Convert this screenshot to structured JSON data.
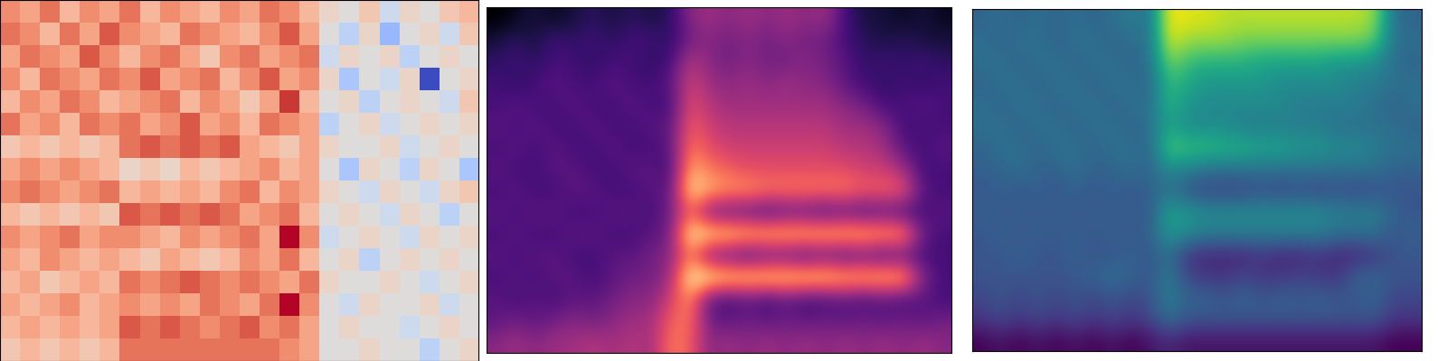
{
  "chart_data": [
    {
      "type": "heatmap",
      "color": "coolwarm",
      "tick_labels": false,
      "cells": [
        [
          0.5,
          0.4,
          0.6,
          0.3,
          0.5,
          0.4,
          0.6,
          0.3,
          0.5,
          0.4,
          0.3,
          0.5,
          0.4,
          0.6,
          0.5,
          0.3,
          0.1,
          0.0,
          0.2,
          -0.1,
          0.1,
          0.0,
          0.2,
          0.3
        ],
        [
          0.6,
          0.5,
          0.3,
          0.6,
          0.4,
          0.7,
          0.5,
          0.4,
          0.3,
          0.6,
          0.5,
          0.4,
          0.3,
          0.5,
          0.7,
          0.4,
          0.0,
          -0.2,
          0.1,
          -0.4,
          0.0,
          0.1,
          -0.1,
          0.2
        ],
        [
          0.4,
          0.6,
          0.5,
          0.4,
          0.7,
          0.5,
          0.3,
          0.5,
          0.6,
          0.4,
          0.2,
          0.5,
          0.6,
          0.4,
          0.5,
          0.6,
          -0.1,
          0.1,
          0.0,
          0.1,
          -0.2,
          0.0,
          0.1,
          0.0
        ],
        [
          0.5,
          0.3,
          0.6,
          0.5,
          0.4,
          0.6,
          0.5,
          0.7,
          0.4,
          0.5,
          0.6,
          0.3,
          0.5,
          0.7,
          0.4,
          0.5,
          0.1,
          -0.3,
          0.0,
          -0.1,
          0.1,
          -0.9,
          0.0,
          0.1
        ],
        [
          0.3,
          0.5,
          0.4,
          0.6,
          0.5,
          0.3,
          0.4,
          0.5,
          0.6,
          0.3,
          0.5,
          0.4,
          0.2,
          0.4,
          0.8,
          0.3,
          0.0,
          0.1,
          -0.2,
          0.0,
          0.1,
          0.0,
          -0.1,
          0.2
        ],
        [
          0.6,
          0.4,
          0.5,
          0.3,
          0.6,
          0.5,
          0.6,
          0.4,
          0.5,
          0.7,
          0.4,
          0.5,
          0.3,
          0.6,
          0.5,
          0.4,
          -0.2,
          0.0,
          0.1,
          -0.1,
          0.0,
          0.1,
          0.0,
          0.1
        ],
        [
          0.2,
          0.3,
          0.2,
          0.3,
          0.2,
          0.3,
          0.6,
          0.7,
          0.6,
          0.7,
          0.6,
          0.7,
          0.4,
          0.3,
          0.2,
          0.4,
          0.1,
          0.0,
          0.0,
          0.1,
          -0.1,
          0.0,
          0.1,
          0.0
        ],
        [
          0.4,
          0.5,
          0.4,
          0.5,
          0.4,
          0.3,
          0.1,
          0.2,
          0.1,
          0.3,
          0.2,
          0.3,
          0.4,
          0.5,
          0.3,
          0.4,
          0.0,
          -0.3,
          0.1,
          0.0,
          -0.2,
          0.1,
          0.0,
          -0.3
        ],
        [
          0.5,
          0.6,
          0.5,
          0.4,
          0.5,
          0.6,
          0.3,
          0.4,
          0.3,
          0.4,
          0.3,
          0.5,
          0.6,
          0.3,
          0.5,
          0.4,
          0.1,
          0.0,
          -0.1,
          0.1,
          0.0,
          -0.1,
          0.1,
          0.2
        ],
        [
          0.3,
          0.2,
          0.3,
          0.2,
          0.3,
          0.2,
          0.7,
          0.6,
          0.7,
          0.6,
          0.7,
          0.6,
          0.4,
          0.5,
          0.6,
          0.3,
          0.0,
          0.1,
          0.0,
          -0.1,
          0.1,
          0.0,
          -0.2,
          0.0
        ],
        [
          0.5,
          0.4,
          0.5,
          0.6,
          0.4,
          0.5,
          0.5,
          0.4,
          0.3,
          0.5,
          0.4,
          0.5,
          0.6,
          0.4,
          0.9,
          0.5,
          -0.1,
          0.0,
          0.1,
          0.0,
          -0.1,
          0.1,
          0.0,
          0.1
        ],
        [
          0.4,
          0.3,
          0.5,
          0.4,
          0.3,
          0.4,
          0.3,
          0.2,
          0.4,
          0.3,
          0.2,
          0.3,
          0.5,
          0.4,
          0.6,
          0.3,
          0.0,
          0.1,
          -0.2,
          0.0,
          0.1,
          0.0,
          0.1,
          0.0
        ],
        [
          0.3,
          0.4,
          0.2,
          0.3,
          0.4,
          0.3,
          0.6,
          0.5,
          0.6,
          0.7,
          0.6,
          0.5,
          0.6,
          0.5,
          0.4,
          0.6,
          0.1,
          0.0,
          0.0,
          0.1,
          0.0,
          -0.1,
          0.0,
          0.1
        ],
        [
          0.4,
          0.3,
          0.4,
          0.5,
          0.3,
          0.4,
          0.5,
          0.4,
          0.5,
          0.4,
          0.6,
          0.5,
          0.4,
          0.6,
          0.9,
          0.5,
          0.0,
          -0.1,
          0.1,
          0.0,
          0.0,
          0.1,
          -0.1,
          0.0
        ],
        [
          0.3,
          0.4,
          0.3,
          0.4,
          0.3,
          0.4,
          0.7,
          0.6,
          0.7,
          0.6,
          0.5,
          0.6,
          0.7,
          0.5,
          0.6,
          0.4,
          0.0,
          0.1,
          0.0,
          0.0,
          -0.1,
          0.0,
          0.1,
          0.0
        ],
        [
          0.2,
          0.3,
          0.2,
          0.3,
          0.2,
          0.3,
          0.6,
          0.6,
          0.6,
          0.6,
          0.6,
          0.6,
          0.6,
          0.6,
          0.5,
          0.4,
          0.0,
          0.0,
          0.1,
          0.0,
          0.0,
          -0.2,
          0.0,
          0.1
        ]
      ]
    },
    {
      "type": "heatmap",
      "color": "magma",
      "tick_labels": false,
      "cells": [
        [
          0.1,
          0.15,
          0.2,
          0.15,
          0.2,
          0.25,
          0.2,
          0.25,
          0.2,
          0.25,
          0.45,
          0.5,
          0.45,
          0.5,
          0.45,
          0.5,
          0.45,
          0.5,
          0.3,
          0.2,
          0.2,
          0.15,
          0.2,
          0.15
        ],
        [
          0.2,
          0.25,
          0.2,
          0.3,
          0.25,
          0.3,
          0.25,
          0.3,
          0.3,
          0.25,
          0.4,
          0.45,
          0.4,
          0.45,
          0.4,
          0.45,
          0.4,
          0.4,
          0.3,
          0.25,
          0.2,
          0.25,
          0.2,
          0.2
        ],
        [
          0.25,
          0.3,
          0.25,
          0.3,
          0.3,
          0.25,
          0.3,
          0.3,
          0.25,
          0.3,
          0.55,
          0.45,
          0.4,
          0.45,
          0.4,
          0.4,
          0.45,
          0.4,
          0.35,
          0.25,
          0.3,
          0.25,
          0.3,
          0.25
        ],
        [
          0.3,
          0.25,
          0.3,
          0.35,
          0.3,
          0.3,
          0.35,
          0.3,
          0.3,
          0.35,
          0.6,
          0.5,
          0.45,
          0.5,
          0.45,
          0.5,
          0.45,
          0.45,
          0.35,
          0.3,
          0.25,
          0.3,
          0.25,
          0.3
        ],
        [
          0.3,
          0.35,
          0.3,
          0.3,
          0.35,
          0.3,
          0.3,
          0.35,
          0.3,
          0.3,
          0.65,
          0.55,
          0.5,
          0.5,
          0.5,
          0.5,
          0.5,
          0.5,
          0.45,
          0.4,
          0.3,
          0.3,
          0.35,
          0.3
        ],
        [
          0.35,
          0.3,
          0.35,
          0.3,
          0.3,
          0.35,
          0.3,
          0.3,
          0.35,
          0.35,
          0.7,
          0.6,
          0.55,
          0.55,
          0.55,
          0.55,
          0.55,
          0.55,
          0.5,
          0.5,
          0.45,
          0.3,
          0.3,
          0.3
        ],
        [
          0.3,
          0.35,
          0.3,
          0.35,
          0.3,
          0.3,
          0.35,
          0.3,
          0.3,
          0.35,
          0.75,
          0.65,
          0.6,
          0.6,
          0.6,
          0.6,
          0.6,
          0.6,
          0.55,
          0.55,
          0.5,
          0.35,
          0.3,
          0.35
        ],
        [
          0.35,
          0.3,
          0.3,
          0.35,
          0.35,
          0.3,
          0.3,
          0.35,
          0.35,
          0.3,
          0.85,
          0.75,
          0.7,
          0.65,
          0.65,
          0.65,
          0.65,
          0.65,
          0.65,
          0.6,
          0.6,
          0.5,
          0.3,
          0.3
        ],
        [
          0.3,
          0.35,
          0.3,
          0.3,
          0.35,
          0.35,
          0.3,
          0.3,
          0.35,
          0.35,
          0.95,
          0.85,
          0.8,
          0.8,
          0.75,
          0.75,
          0.75,
          0.75,
          0.75,
          0.7,
          0.7,
          0.7,
          0.35,
          0.3
        ],
        [
          0.35,
          0.3,
          0.35,
          0.35,
          0.3,
          0.3,
          0.35,
          0.35,
          0.3,
          0.4,
          0.7,
          0.4,
          0.35,
          0.35,
          0.3,
          0.35,
          0.35,
          0.3,
          0.35,
          0.3,
          0.35,
          0.3,
          0.3,
          0.35
        ],
        [
          0.3,
          0.35,
          0.3,
          0.3,
          0.35,
          0.35,
          0.3,
          0.3,
          0.35,
          0.4,
          1.0,
          0.95,
          0.95,
          0.9,
          0.9,
          0.9,
          0.9,
          0.9,
          0.9,
          0.9,
          0.85,
          0.85,
          0.4,
          0.3
        ],
        [
          0.35,
          0.3,
          0.35,
          0.35,
          0.3,
          0.3,
          0.35,
          0.35,
          0.4,
          0.45,
          0.75,
          0.4,
          0.35,
          0.3,
          0.35,
          0.35,
          0.3,
          0.35,
          0.3,
          0.35,
          0.3,
          0.35,
          0.3,
          0.3
        ],
        [
          0.3,
          0.35,
          0.3,
          0.35,
          0.35,
          0.3,
          0.35,
          0.4,
          0.4,
          0.5,
          1.0,
          1.0,
          0.95,
          0.95,
          0.95,
          0.95,
          0.95,
          0.95,
          0.9,
          0.9,
          0.9,
          0.9,
          0.45,
          0.3
        ],
        [
          0.35,
          0.3,
          0.35,
          0.3,
          0.35,
          0.35,
          0.4,
          0.45,
          0.45,
          0.6,
          0.8,
          0.35,
          0.3,
          0.35,
          0.3,
          0.35,
          0.3,
          0.3,
          0.35,
          0.3,
          0.35,
          0.3,
          0.35,
          0.3
        ],
        [
          0.35,
          0.4,
          0.35,
          0.4,
          0.45,
          0.4,
          0.45,
          0.5,
          0.5,
          0.7,
          0.75,
          0.4,
          0.35,
          0.4,
          0.35,
          0.4,
          0.35,
          0.4,
          0.35,
          0.4,
          0.35,
          0.4,
          0.35,
          0.4
        ],
        [
          0.45,
          0.5,
          0.45,
          0.5,
          0.5,
          0.55,
          0.5,
          0.55,
          0.5,
          0.75,
          0.7,
          0.45,
          0.5,
          0.45,
          0.5,
          0.45,
          0.5,
          0.45,
          0.5,
          0.45,
          0.5,
          0.45,
          0.5,
          0.45
        ]
      ]
    },
    {
      "type": "heatmap",
      "color": "viridis",
      "tick_labels": false,
      "cells": [
        [
          0.35,
          0.4,
          0.35,
          0.4,
          0.35,
          0.4,
          0.35,
          0.4,
          0.45,
          0.4,
          1.0,
          0.95,
          0.95,
          0.9,
          0.9,
          0.9,
          0.9,
          0.9,
          0.9,
          0.9,
          0.9,
          0.85,
          0.4,
          0.35
        ],
        [
          0.4,
          0.35,
          0.4,
          0.4,
          0.35,
          0.4,
          0.4,
          0.35,
          0.4,
          0.4,
          0.95,
          0.85,
          0.85,
          0.85,
          0.8,
          0.8,
          0.8,
          0.8,
          0.8,
          0.8,
          0.8,
          0.75,
          0.4,
          0.4
        ],
        [
          0.4,
          0.4,
          0.35,
          0.4,
          0.4,
          0.35,
          0.4,
          0.4,
          0.35,
          0.4,
          0.8,
          0.7,
          0.65,
          0.65,
          0.65,
          0.6,
          0.6,
          0.6,
          0.6,
          0.55,
          0.55,
          0.5,
          0.4,
          0.35
        ],
        [
          0.35,
          0.4,
          0.4,
          0.35,
          0.4,
          0.4,
          0.35,
          0.4,
          0.4,
          0.35,
          0.7,
          0.6,
          0.55,
          0.55,
          0.55,
          0.55,
          0.5,
          0.5,
          0.5,
          0.5,
          0.45,
          0.45,
          0.4,
          0.4
        ],
        [
          0.4,
          0.35,
          0.4,
          0.4,
          0.35,
          0.4,
          0.4,
          0.35,
          0.4,
          0.4,
          0.65,
          0.55,
          0.5,
          0.5,
          0.5,
          0.5,
          0.5,
          0.45,
          0.45,
          0.45,
          0.45,
          0.4,
          0.35,
          0.4
        ],
        [
          0.4,
          0.4,
          0.35,
          0.4,
          0.4,
          0.35,
          0.4,
          0.4,
          0.35,
          0.4,
          0.6,
          0.5,
          0.5,
          0.5,
          0.45,
          0.45,
          0.45,
          0.45,
          0.45,
          0.4,
          0.4,
          0.4,
          0.4,
          0.35
        ],
        [
          0.35,
          0.4,
          0.4,
          0.35,
          0.4,
          0.4,
          0.35,
          0.4,
          0.4,
          0.35,
          0.75,
          0.7,
          0.7,
          0.65,
          0.65,
          0.6,
          0.6,
          0.55,
          0.55,
          0.5,
          0.5,
          0.45,
          0.4,
          0.4
        ],
        [
          0.35,
          0.35,
          0.4,
          0.35,
          0.35,
          0.4,
          0.35,
          0.35,
          0.4,
          0.35,
          0.5,
          0.45,
          0.4,
          0.4,
          0.4,
          0.4,
          0.4,
          0.4,
          0.4,
          0.4,
          0.4,
          0.4,
          0.35,
          0.35
        ],
        [
          0.3,
          0.35,
          0.3,
          0.35,
          0.3,
          0.35,
          0.3,
          0.35,
          0.3,
          0.35,
          0.4,
          0.3,
          0.25,
          0.25,
          0.25,
          0.3,
          0.25,
          0.3,
          0.25,
          0.3,
          0.25,
          0.3,
          0.3,
          0.3
        ],
        [
          0.35,
          0.3,
          0.35,
          0.3,
          0.35,
          0.3,
          0.35,
          0.3,
          0.35,
          0.3,
          0.6,
          0.55,
          0.5,
          0.5,
          0.5,
          0.5,
          0.5,
          0.5,
          0.5,
          0.45,
          0.45,
          0.45,
          0.35,
          0.3
        ],
        [
          0.3,
          0.35,
          0.3,
          0.35,
          0.3,
          0.35,
          0.3,
          0.35,
          0.3,
          0.35,
          0.55,
          0.5,
          0.45,
          0.45,
          0.45,
          0.45,
          0.45,
          0.45,
          0.45,
          0.4,
          0.4,
          0.4,
          0.3,
          0.35
        ],
        [
          0.3,
          0.3,
          0.35,
          0.3,
          0.3,
          0.35,
          0.3,
          0.3,
          0.35,
          0.3,
          0.4,
          0.2,
          0.15,
          0.15,
          0.15,
          0.2,
          0.15,
          0.15,
          0.2,
          0.15,
          0.15,
          0.2,
          0.3,
          0.3
        ],
        [
          0.3,
          0.3,
          0.3,
          0.3,
          0.3,
          0.3,
          0.35,
          0.4,
          0.35,
          0.3,
          0.45,
          0.25,
          0.2,
          0.2,
          0.25,
          0.2,
          0.2,
          0.25,
          0.2,
          0.2,
          0.35,
          0.35,
          0.3,
          0.3
        ],
        [
          0.25,
          0.3,
          0.25,
          0.3,
          0.25,
          0.3,
          0.25,
          0.3,
          0.25,
          0.3,
          0.45,
          0.35,
          0.35,
          0.3,
          0.35,
          0.3,
          0.35,
          0.3,
          0.35,
          0.3,
          0.3,
          0.35,
          0.25,
          0.25
        ],
        [
          0.2,
          0.25,
          0.2,
          0.25,
          0.2,
          0.25,
          0.2,
          0.25,
          0.2,
          0.25,
          0.4,
          0.3,
          0.3,
          0.3,
          0.3,
          0.3,
          0.3,
          0.3,
          0.3,
          0.3,
          0.3,
          0.3,
          0.2,
          0.2
        ],
        [
          0.05,
          0.1,
          0.05,
          0.1,
          0.05,
          0.1,
          0.05,
          0.1,
          0.05,
          0.1,
          0.15,
          0.1,
          0.1,
          0.1,
          0.1,
          0.1,
          0.1,
          0.1,
          0.1,
          0.1,
          0.1,
          0.1,
          0.05,
          0.05
        ]
      ]
    }
  ]
}
